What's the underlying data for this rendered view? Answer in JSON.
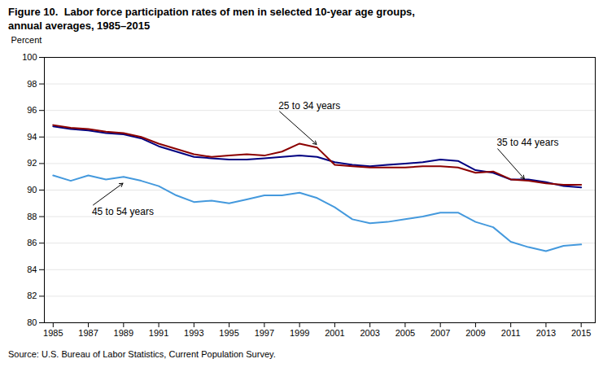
{
  "chart_data": {
    "type": "line",
    "title": "Figure 10.  Labor force participation rates of men in selected 10-year age groups,",
    "subtitle": "annual averages, 1985–2015",
    "ylabel": "Percent",
    "source": "Source: U.S. Bureau of Labor Statistics, Current Population Survey.",
    "x": [
      1985,
      1986,
      1987,
      1988,
      1989,
      1990,
      1991,
      1992,
      1993,
      1994,
      1995,
      1996,
      1997,
      1998,
      1999,
      2000,
      2001,
      2002,
      2003,
      2004,
      2005,
      2006,
      2007,
      2008,
      2009,
      2010,
      2011,
      2012,
      2013,
      2014,
      2015
    ],
    "series": [
      {
        "name": "35 to 44 years",
        "color": "#000080",
        "values": [
          94.8,
          94.6,
          94.5,
          94.3,
          94.2,
          93.9,
          93.3,
          92.9,
          92.5,
          92.4,
          92.3,
          92.3,
          92.4,
          92.5,
          92.6,
          92.5,
          92.1,
          91.9,
          91.8,
          91.9,
          92.0,
          92.1,
          92.3,
          92.2,
          91.5,
          91.3,
          90.8,
          90.8,
          90.6,
          90.3,
          90.2
        ]
      },
      {
        "name": "25 to 34 years",
        "color": "#8B0000",
        "values": [
          94.9,
          94.7,
          94.6,
          94.4,
          94.3,
          94.0,
          93.5,
          93.1,
          92.7,
          92.5,
          92.6,
          92.7,
          92.6,
          92.9,
          93.5,
          93.2,
          91.9,
          91.8,
          91.7,
          91.7,
          91.7,
          91.8,
          91.8,
          91.7,
          91.3,
          91.4,
          90.8,
          90.7,
          90.5,
          90.4,
          90.4
        ]
      },
      {
        "name": "45 to 54 years",
        "color": "#4499dd",
        "values": [
          91.1,
          90.7,
          91.1,
          90.8,
          91.0,
          90.7,
          90.3,
          89.6,
          89.1,
          89.2,
          89.0,
          89.3,
          89.6,
          89.6,
          89.8,
          89.4,
          88.7,
          87.8,
          87.5,
          87.6,
          87.8,
          88.0,
          88.3,
          88.3,
          87.6,
          87.2,
          86.1,
          85.7,
          85.4,
          85.8,
          85.9
        ]
      }
    ],
    "xlim": [
      1984.5,
      2015.8
    ],
    "xticks": [
      1985,
      1987,
      1989,
      1991,
      1993,
      1995,
      1997,
      1999,
      2001,
      2003,
      2005,
      2007,
      2009,
      2011,
      2013,
      2015
    ],
    "ylim": [
      80,
      100
    ],
    "yticks": [
      80,
      82,
      84,
      86,
      88,
      90,
      92,
      94,
      96,
      98,
      100
    ],
    "grid": true,
    "annotations": [
      {
        "text": "25 to 34 years",
        "xy": [
          2000.0,
          93.4
        ],
        "xytext": [
          1997.8,
          96.0
        ]
      },
      {
        "text": "35 to 44 years",
        "xy": [
          2011.8,
          90.8
        ],
        "xytext": [
          2010.2,
          93.2
        ]
      },
      {
        "text": "45 to 54 years",
        "xy": [
          1989.0,
          90.55
        ],
        "xytext": [
          1987.2,
          88.8
        ]
      }
    ]
  }
}
